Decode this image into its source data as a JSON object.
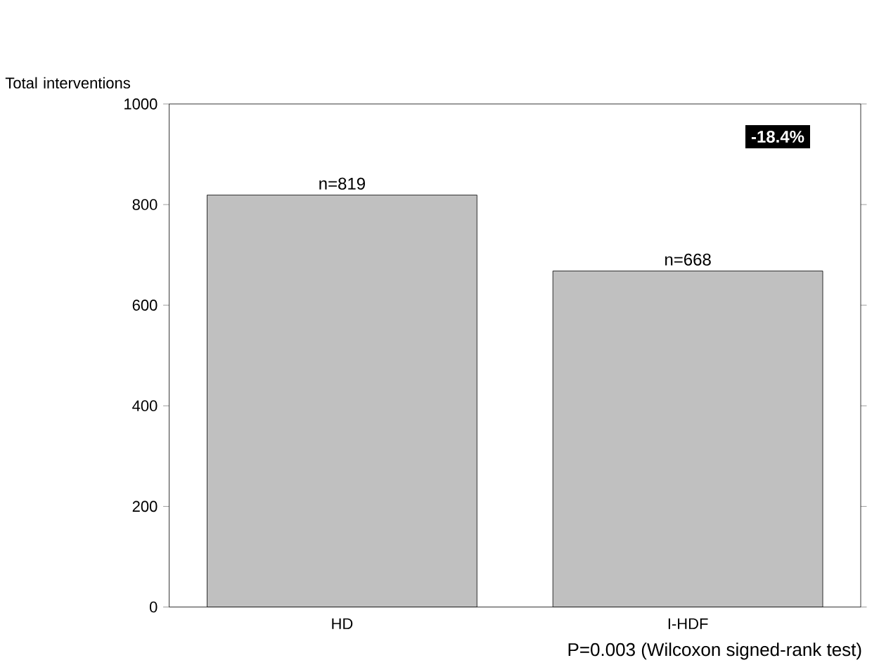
{
  "chart_data": {
    "type": "bar",
    "ylabel": "Total interventions",
    "categories": [
      "HD",
      "I-HDF"
    ],
    "values": [
      819,
      668
    ],
    "value_labels": [
      "n=819",
      "n=668"
    ],
    "color": "#c0c0c0",
    "ylim": [
      0,
      1000
    ],
    "yticks": [
      0,
      200,
      400,
      600,
      800,
      1000
    ],
    "annotations": [
      "-18.4%",
      "P=0.003 (Wilcoxon signed-rank test)"
    ]
  }
}
